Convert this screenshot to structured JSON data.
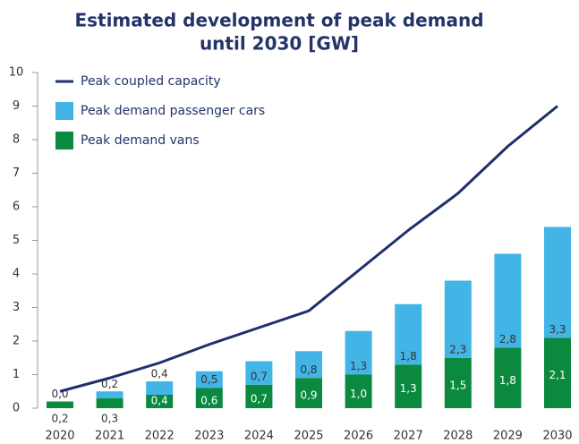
{
  "chart_data": {
    "type": "stacked_bar_line",
    "title": [
      "Estimated development of peak demand",
      "until 2030 [GW]"
    ],
    "categories": [
      "2020",
      "2021",
      "2022",
      "2023",
      "2024",
      "2025",
      "2026",
      "2027",
      "2028",
      "2029",
      "2030"
    ],
    "series": [
      {
        "name": "Peak demand vans",
        "color": "#0b8a3f",
        "kind": "bar",
        "values": [
          0.2,
          0.3,
          0.4,
          0.6,
          0.7,
          0.9,
          1.0,
          1.3,
          1.5,
          1.8,
          2.1
        ],
        "value_labels": [
          "0,2",
          "0,3",
          "0,4",
          "0,6",
          "0,7",
          "0,9",
          "1,0",
          "1,3",
          "1,5",
          "1,8",
          "2,1"
        ]
      },
      {
        "name": "Peak demand passenger cars",
        "color": "#42b4e6",
        "kind": "bar",
        "values": [
          0.0,
          0.2,
          0.4,
          0.5,
          0.7,
          0.8,
          1.3,
          1.8,
          2.3,
          2.8,
          3.3
        ],
        "value_labels": [
          "0,0",
          "0,2",
          "0,4",
          "0,5",
          "0,7",
          "0,8",
          "1,3",
          "1,8",
          "2,3",
          "2,8",
          "3,3"
        ]
      },
      {
        "name": "Peak coupled capacity",
        "color": "#1f2f6b",
        "kind": "line",
        "values": [
          0.5,
          0.9,
          1.35,
          1.9,
          2.4,
          2.9,
          4.1,
          5.3,
          6.4,
          7.8,
          9.0
        ]
      }
    ],
    "ylim": [
      0,
      10
    ],
    "yticks": [
      0,
      1,
      2,
      3,
      4,
      5,
      6,
      7,
      8,
      9,
      10
    ],
    "grid": false,
    "legend": "upper left"
  }
}
